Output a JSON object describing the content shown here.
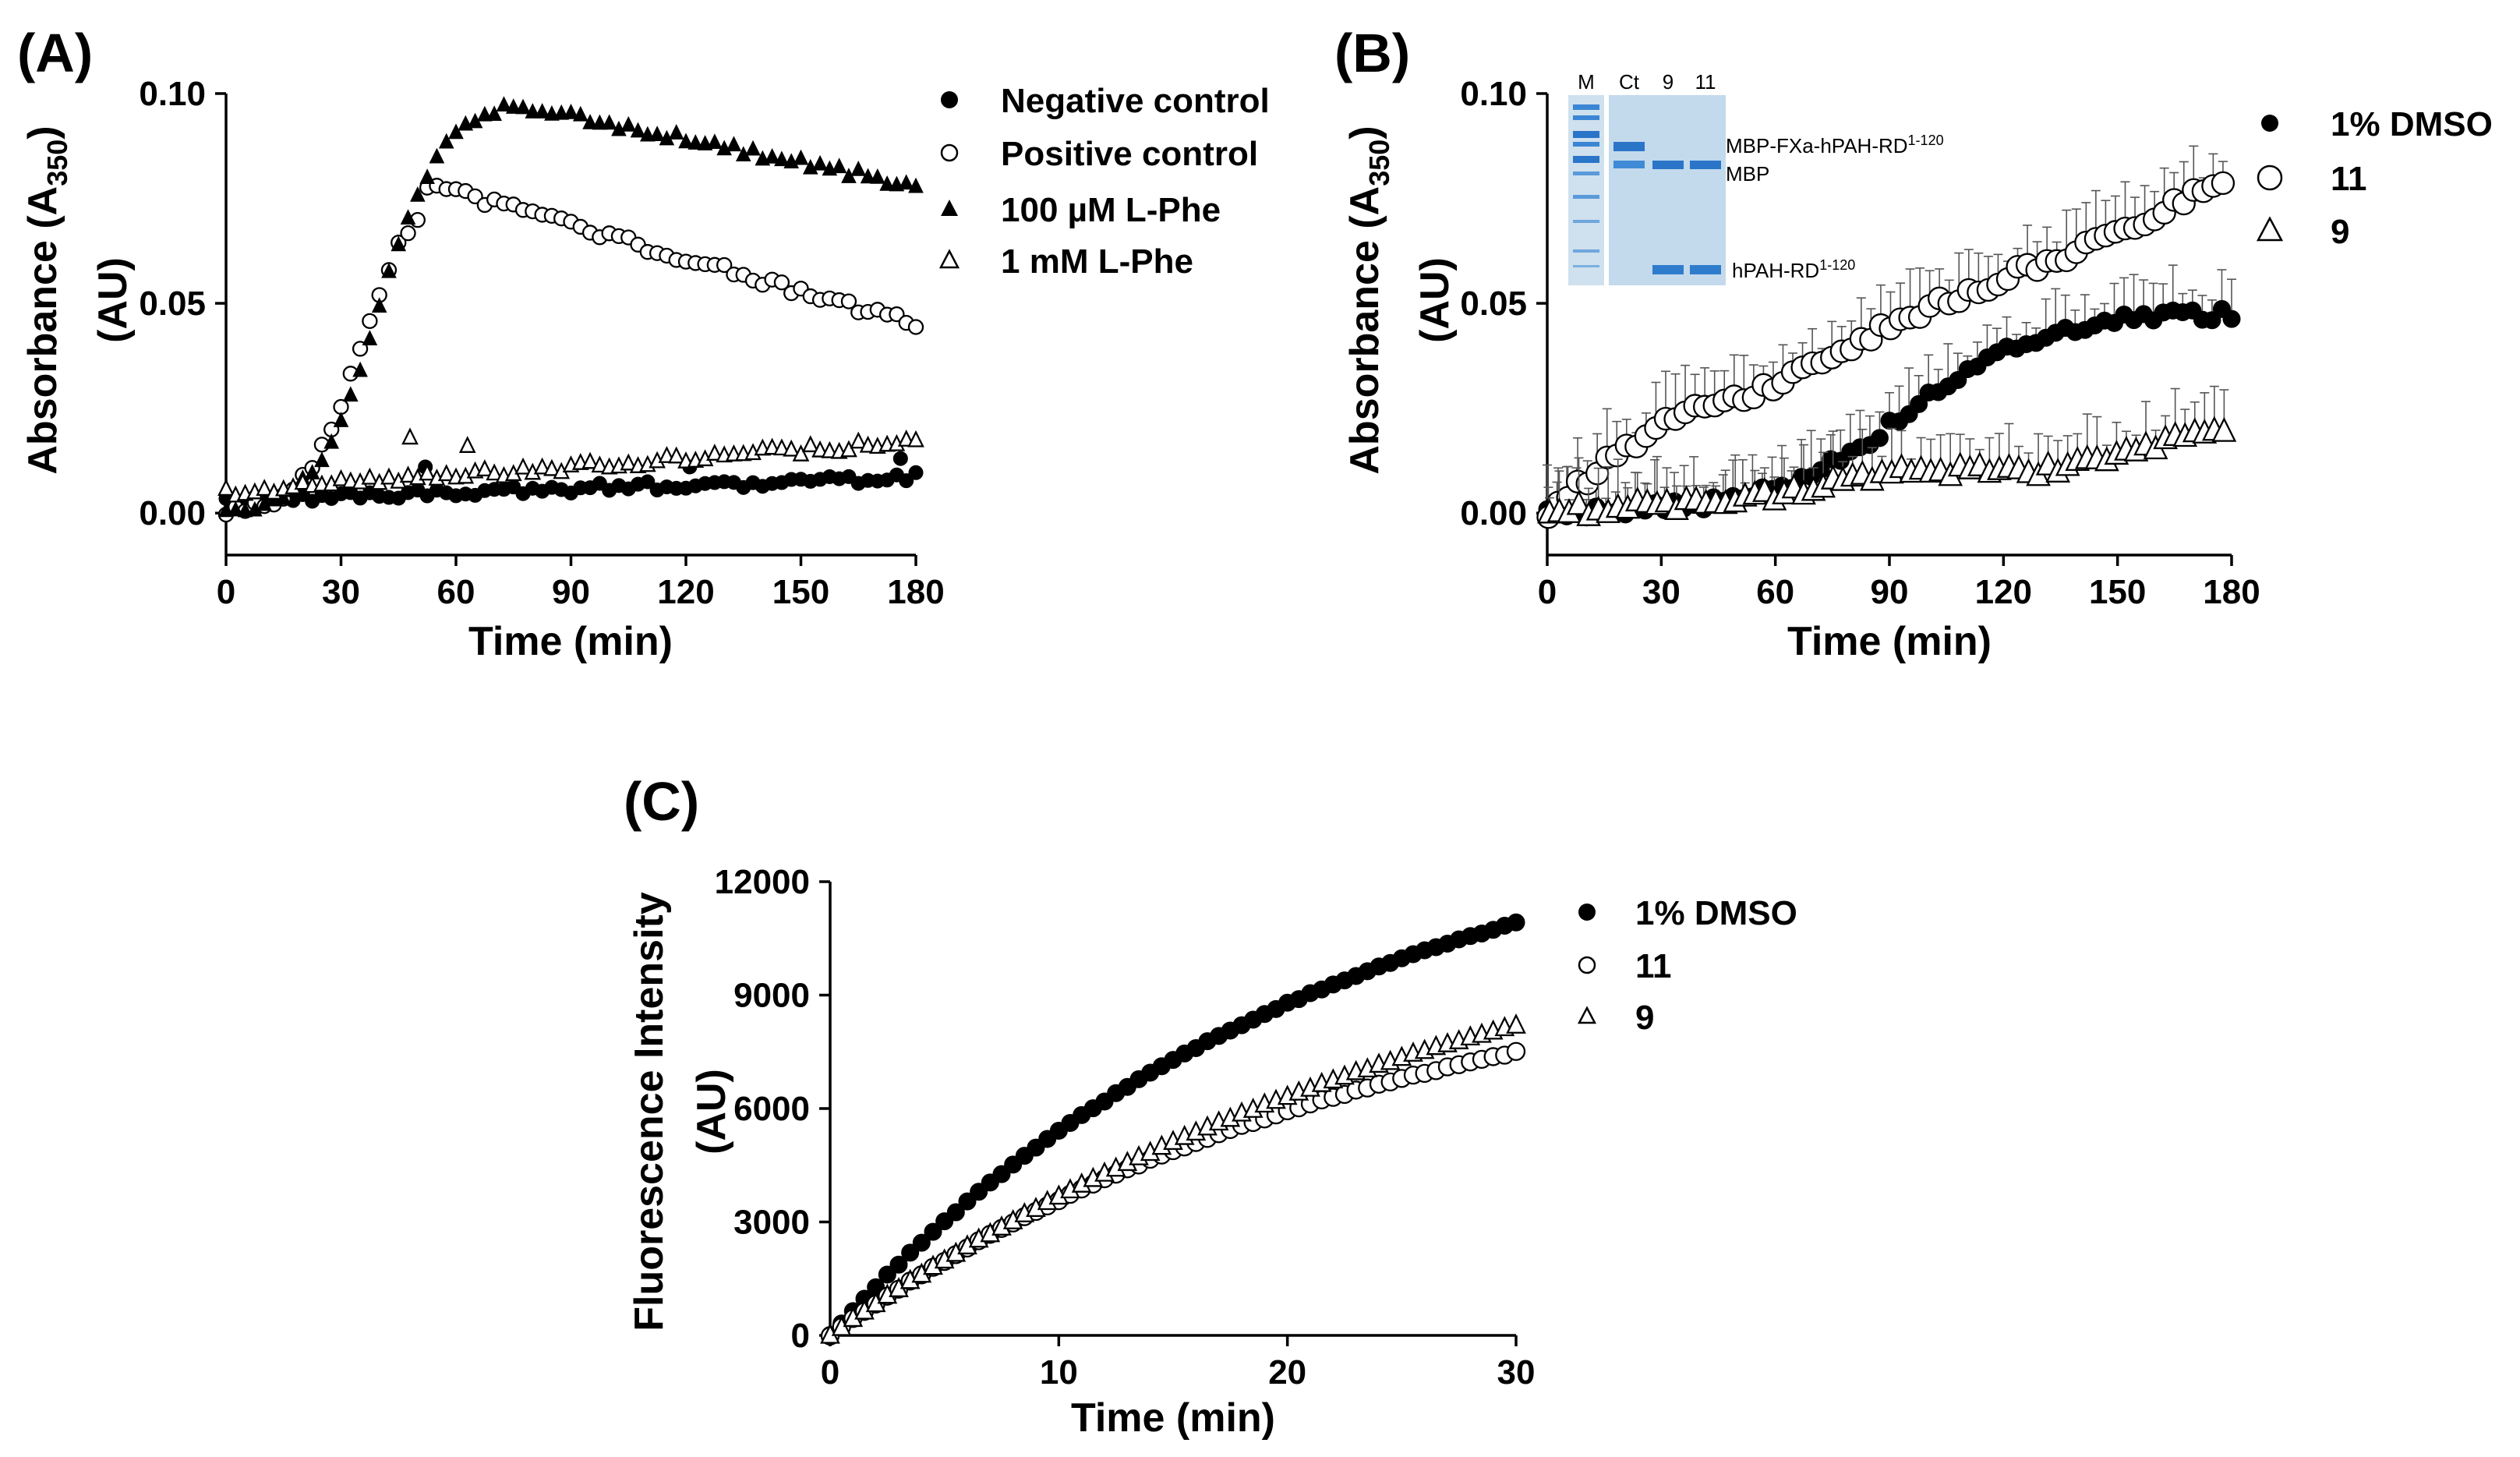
{
  "figure": {
    "panels": [
      "(A)",
      "(B)",
      "(C)"
    ]
  },
  "chart_data": [
    {
      "panel": "(A)",
      "type": "scatter",
      "xlabel": "Time (min)",
      "ylabel_main": "Absorbance (A",
      "ylabel_sub": "350",
      "ylabel_close": ")",
      "ylabel_unit": "(AU)",
      "xlim": [
        0,
        180
      ],
      "ylim": [
        -0.01,
        0.1
      ],
      "xticks": [
        "0",
        "30",
        "60",
        "90",
        "120",
        "150",
        "180"
      ],
      "xtick_values": [
        0,
        30,
        60,
        90,
        120,
        150,
        180
      ],
      "yticks": [
        "0.00",
        "0.05",
        "0.10"
      ],
      "ytick_values": [
        0,
        0.05,
        0.1
      ],
      "legend": "right",
      "series": [
        {
          "name": "Negative control",
          "legend_label": "Negative control",
          "marker": "circle-filled",
          "size": "small",
          "curve": {
            "kind": "linear",
            "a": 0.003,
            "b": 0.0056
          },
          "extra_points": [
            {
              "x": 52,
              "y": 0.011
            },
            {
              "x": 121,
              "y": 0.011
            },
            {
              "x": 176,
              "y": 0.013
            }
          ]
        },
        {
          "name": "Positive control",
          "legend_label": "Positive control",
          "marker": "circle-open",
          "size": "small",
          "curve": {
            "kind": "rise-fall",
            "rise_k": 35,
            "rise_s": 7,
            "peak_x": 50,
            "peak_y": 0.079,
            "end_y": 0.045
          }
        },
        {
          "name": "100 µM L-Phe",
          "legend_label": "100 µM L-Phe",
          "marker": "triangle-filled",
          "size": "small",
          "curve": {
            "kind": "rise-fall",
            "rise_k": 40,
            "rise_s": 8,
            "peak_x": 73,
            "peak_y": 0.098,
            "end_y": 0.078
          }
        },
        {
          "name": "1 mM L-Phe",
          "legend_label": "1 mM L-Phe",
          "marker": "triangle-open",
          "size": "small",
          "curve": {
            "kind": "linear",
            "a": 0.005,
            "b": 0.012
          },
          "extra_points": [
            {
              "x": 48,
              "y": 0.018
            },
            {
              "x": 63,
              "y": 0.016
            }
          ]
        }
      ]
    },
    {
      "panel": "(B)",
      "type": "scatter",
      "xlabel": "Time (min)",
      "ylabel_main": "Absorbance (A",
      "ylabel_sub": "350",
      "ylabel_close": ")",
      "ylabel_unit": "(AU)",
      "xlim": [
        0,
        180
      ],
      "ylim": [
        -0.01,
        0.1
      ],
      "xticks": [
        "0",
        "30",
        "60",
        "90",
        "120",
        "150",
        "180"
      ],
      "xtick_values": [
        0,
        30,
        60,
        90,
        120,
        150,
        180
      ],
      "yticks": [
        "0.00",
        "0.05",
        "0.10"
      ],
      "ytick_values": [
        0,
        0.05,
        0.1
      ],
      "legend": "right",
      "error_bars": true,
      "series": [
        {
          "name": "1% DMSO",
          "legend_label": "1% DMSO",
          "marker": "circle-filled",
          "size": "medium",
          "curve": {
            "kind": "sigmoid",
            "base": 0,
            "top": 0.048,
            "mid": 95,
            "k": 18
          }
        },
        {
          "name": "11",
          "legend_label": "11",
          "marker": "circle-open",
          "size": "large",
          "curve": {
            "kind": "piecewise",
            "points": [
              [
                0,
                0
              ],
              [
                15,
                0.012
              ],
              [
                40,
                0.026
              ],
              [
                60,
                0.03
              ],
              [
                90,
                0.045
              ],
              [
                120,
                0.056
              ],
              [
                150,
                0.066
              ],
              [
                178,
                0.08
              ]
            ]
          }
        },
        {
          "name": "9",
          "legend_label": "9",
          "marker": "triangle-open",
          "size": "large",
          "curve": {
            "kind": "piecewise",
            "points": [
              [
                0,
                0
              ],
              [
                60,
                0.004
              ],
              [
                90,
                0.01
              ],
              [
                130,
                0.01
              ],
              [
                178,
                0.02
              ]
            ]
          }
        }
      ],
      "inset_gel": {
        "lanes": [
          "M",
          "Ct",
          "9",
          "11"
        ],
        "band_top": "MBP-FXa-hPAH-RD",
        "band_top_sup": "1-120",
        "band_mid": "MBP",
        "band_low": "hPAH-RD",
        "band_low_sup": "1-120"
      }
    },
    {
      "panel": "(C)",
      "type": "scatter",
      "xlabel": "Time (min)",
      "ylabel_main": "Fluorescence Intensity",
      "ylabel_unit": "(AU)",
      "xlim": [
        0,
        30
      ],
      "ylim": [
        0,
        12000
      ],
      "xticks": [
        "0",
        "10",
        "20",
        "30"
      ],
      "xtick_values": [
        0,
        10,
        20,
        30
      ],
      "yticks": [
        "0",
        "3000",
        "6000",
        "9000",
        "12000"
      ],
      "ytick_values": [
        0,
        3000,
        6000,
        9000,
        12000
      ],
      "legend": "right",
      "series": [
        {
          "name": "1% DMSO",
          "legend_label": "1% DMSO",
          "marker": "circle-filled",
          "size": "medium",
          "curve": {
            "kind": "saturating",
            "A": 14500,
            "tau": 21.5
          }
        },
        {
          "name": "11",
          "legend_label": "11",
          "marker": "circle-open",
          "size": "medium",
          "curve": {
            "kind": "saturating",
            "A": 10500,
            "tau": 24
          }
        },
        {
          "name": "9",
          "legend_label": "9",
          "marker": "triangle-open",
          "size": "medium",
          "curve": {
            "kind": "saturating",
            "A": 13000,
            "tau": 30
          }
        }
      ]
    }
  ]
}
